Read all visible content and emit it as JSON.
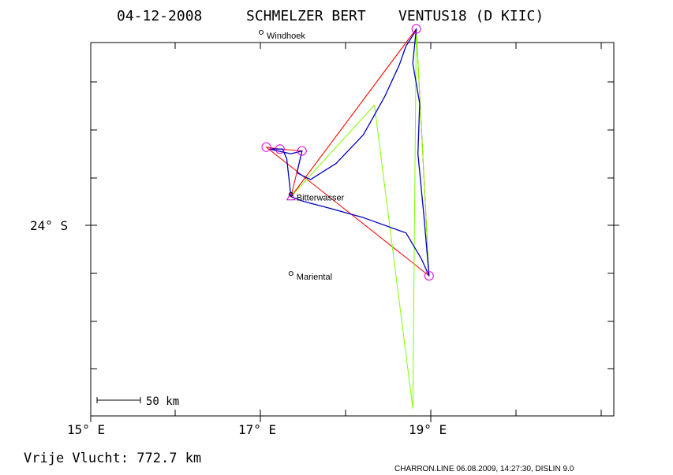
{
  "header": {
    "date": "04-12-2008",
    "pilot": "SCHMELZER BERT",
    "glider": "VENTUS18 (D KIIC)"
  },
  "axes": {
    "x_ticks": [
      "15° E",
      "17° E",
      "19° E"
    ],
    "y_ticks": [
      "24° S"
    ],
    "lon_range": [
      15,
      21.1
    ],
    "lat_range": [
      -26.2,
      -21.8
    ]
  },
  "scale_bar": {
    "label": "50 km"
  },
  "places": [
    {
      "name": "Windhoek",
      "lon": 17.0,
      "lat": -22.0
    },
    {
      "name": "Bitterwasser",
      "lon": 17.35,
      "lat": -23.7
    },
    {
      "name": "Mariental",
      "lon": 17.35,
      "lat": -24.53
    }
  ],
  "turnpoints": [
    {
      "lon": 18.82,
      "lat": -21.94
    },
    {
      "lon": 17.22,
      "lat": -23.2
    },
    {
      "lon": 17.48,
      "lat": -23.22
    },
    {
      "lon": 17.06,
      "lat": -23.18
    },
    {
      "lon": 18.97,
      "lat": -24.53
    }
  ],
  "routes": [
    {
      "name": "orange-task",
      "color": "#ff8000",
      "points": [
        [
          17.35,
          -23.7
        ],
        [
          18.82,
          -21.94
        ],
        [
          17.35,
          -23.7
        ]
      ]
    },
    {
      "name": "red-task",
      "color": "#ff0000",
      "points": [
        [
          17.35,
          -23.7
        ],
        [
          18.82,
          -21.94
        ],
        [
          18.97,
          -24.53
        ],
        [
          17.06,
          -23.18
        ],
        [
          17.22,
          -23.2
        ],
        [
          17.48,
          -23.22
        ],
        [
          17.35,
          -23.7
        ]
      ]
    },
    {
      "name": "green-track",
      "color": "#80ff00",
      "points": [
        [
          17.35,
          -23.7
        ],
        [
          18.33,
          -22.74
        ],
        [
          18.78,
          -25.92
        ],
        [
          18.82,
          -21.94
        ],
        [
          18.97,
          -24.53
        ]
      ]
    },
    {
      "name": "blue-track",
      "color": "#0000c0",
      "points": [
        [
          17.35,
          -23.7
        ],
        [
          17.3,
          -23.3
        ],
        [
          17.25,
          -23.2
        ],
        [
          17.1,
          -23.2
        ],
        [
          17.35,
          -23.25
        ],
        [
          17.48,
          -23.22
        ],
        [
          17.42,
          -23.45
        ],
        [
          17.58,
          -23.52
        ],
        [
          17.88,
          -23.35
        ],
        [
          18.2,
          -23.05
        ],
        [
          18.45,
          -22.65
        ],
        [
          18.62,
          -22.32
        ],
        [
          18.7,
          -22.12
        ],
        [
          18.8,
          -21.98
        ],
        [
          18.82,
          -21.94
        ],
        [
          18.78,
          -22.3
        ],
        [
          18.86,
          -22.72
        ],
        [
          18.84,
          -23.25
        ],
        [
          18.91,
          -23.9
        ],
        [
          18.97,
          -24.53
        ],
        [
          18.88,
          -24.35
        ],
        [
          18.7,
          -24.08
        ],
        [
          18.2,
          -23.92
        ],
        [
          17.8,
          -23.82
        ],
        [
          17.5,
          -23.75
        ],
        [
          17.35,
          -23.7
        ]
      ]
    }
  ],
  "footer": {
    "free_flight": "Vrije Vlucht:  772.7 km",
    "credit": "CHARRON.LINE 06.08.2009, 14:27:30, DISLIN 9.0"
  }
}
